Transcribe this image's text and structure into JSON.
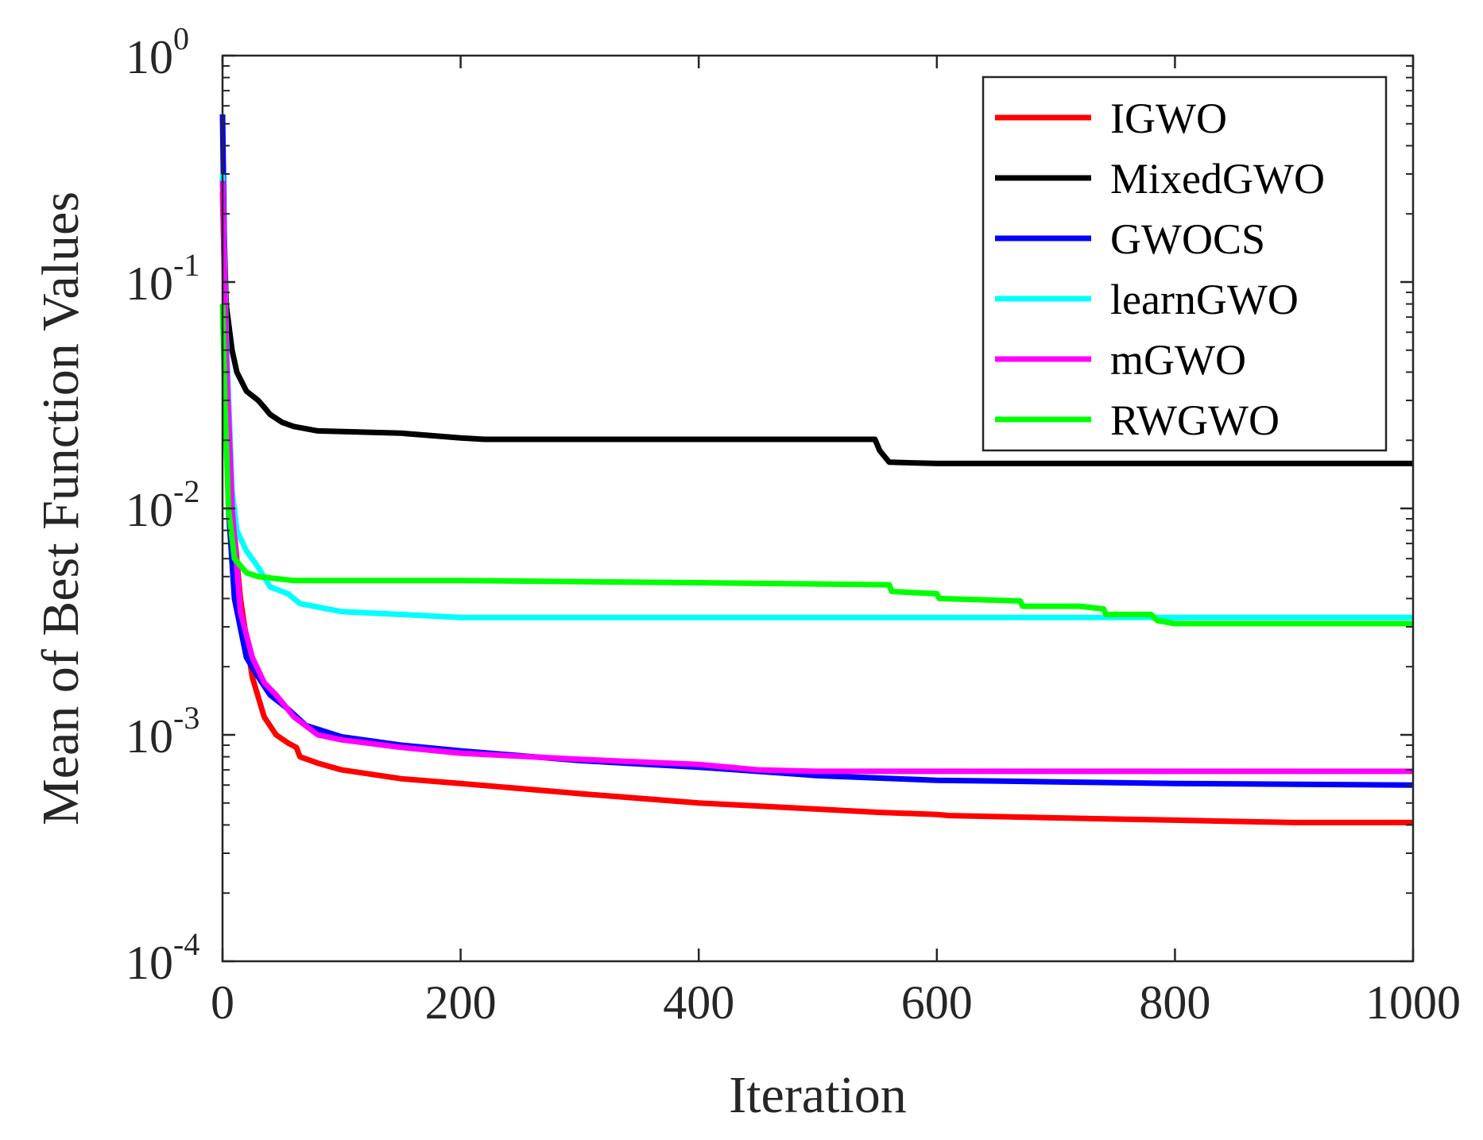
{
  "chart_data": {
    "type": "line",
    "title": "",
    "xlabel": "Iteration",
    "ylabel": "Mean of Best Function Values",
    "xlim": [
      0,
      1000
    ],
    "ylim_log10": [
      -4,
      0
    ],
    "y_scale": "log",
    "grid": false,
    "legend_position": "top-right",
    "x_ticks": [
      0,
      200,
      400,
      600,
      800,
      1000
    ],
    "x_tick_labels": [
      "0",
      "200",
      "400",
      "600",
      "800",
      "1000"
    ],
    "y_ticks": [
      {
        "base": "10",
        "exp": "0",
        "value": 1
      },
      {
        "base": "10",
        "exp": "-1",
        "value": 0.1
      },
      {
        "base": "10",
        "exp": "-2",
        "value": 0.01
      },
      {
        "base": "10",
        "exp": "-3",
        "value": 0.001
      },
      {
        "base": "10",
        "exp": "-4",
        "value": 0.0001
      }
    ],
    "series": [
      {
        "name": "IGWO",
        "color": "#ff0000",
        "points": [
          [
            0,
            0.25
          ],
          [
            3,
            0.05
          ],
          [
            8,
            0.01
          ],
          [
            15,
            0.004
          ],
          [
            25,
            0.0018
          ],
          [
            35,
            0.0012
          ],
          [
            45,
            0.001
          ],
          [
            55,
            0.00092
          ],
          [
            62,
            0.00088
          ],
          [
            65,
            0.0008
          ],
          [
            80,
            0.00075
          ],
          [
            100,
            0.0007
          ],
          [
            150,
            0.00064
          ],
          [
            200,
            0.00061
          ],
          [
            300,
            0.00055
          ],
          [
            400,
            0.0005
          ],
          [
            500,
            0.00047
          ],
          [
            550,
            0.000455
          ],
          [
            600,
            0.000445
          ],
          [
            610,
            0.00044
          ],
          [
            700,
            0.00043
          ],
          [
            800,
            0.00042
          ],
          [
            900,
            0.00041
          ],
          [
            1000,
            0.00041
          ]
        ]
      },
      {
        "name": "MixedGWO",
        "color": "#000000",
        "points": [
          [
            0,
            0.3
          ],
          [
            3,
            0.08
          ],
          [
            8,
            0.05
          ],
          [
            12,
            0.04
          ],
          [
            20,
            0.033
          ],
          [
            30,
            0.03
          ],
          [
            35,
            0.028
          ],
          [
            40,
            0.026
          ],
          [
            50,
            0.024
          ],
          [
            60,
            0.023
          ],
          [
            80,
            0.022
          ],
          [
            150,
            0.0215
          ],
          [
            200,
            0.0205
          ],
          [
            220,
            0.0202
          ],
          [
            400,
            0.0202
          ],
          [
            548,
            0.0202
          ],
          [
            552,
            0.018
          ],
          [
            560,
            0.016
          ],
          [
            600,
            0.0158
          ],
          [
            1000,
            0.0158
          ]
        ]
      },
      {
        "name": "GWOCS",
        "color": "#0000ff",
        "points": [
          [
            0,
            0.55
          ],
          [
            2,
            0.1
          ],
          [
            5,
            0.01
          ],
          [
            10,
            0.004
          ],
          [
            20,
            0.0022
          ],
          [
            30,
            0.0018
          ],
          [
            40,
            0.0015
          ],
          [
            55,
            0.0013
          ],
          [
            70,
            0.0011
          ],
          [
            100,
            0.00098
          ],
          [
            150,
            0.0009
          ],
          [
            200,
            0.00085
          ],
          [
            300,
            0.00077
          ],
          [
            400,
            0.00072
          ],
          [
            500,
            0.00066
          ],
          [
            600,
            0.00063
          ],
          [
            700,
            0.00062
          ],
          [
            800,
            0.00061
          ],
          [
            1000,
            0.0006
          ]
        ]
      },
      {
        "name": "learnGWO",
        "color": "#00ffff",
        "points": [
          [
            0,
            0.3
          ],
          [
            3,
            0.06
          ],
          [
            8,
            0.012
          ],
          [
            12,
            0.008
          ],
          [
            20,
            0.0065
          ],
          [
            30,
            0.0055
          ],
          [
            40,
            0.0045
          ],
          [
            55,
            0.0042
          ],
          [
            65,
            0.0038
          ],
          [
            100,
            0.0035
          ],
          [
            150,
            0.0034
          ],
          [
            200,
            0.0033
          ],
          [
            400,
            0.0033
          ],
          [
            600,
            0.0033
          ],
          [
            800,
            0.0033
          ],
          [
            1000,
            0.0033
          ]
        ]
      },
      {
        "name": "mGWO",
        "color": "#ff00ff",
        "points": [
          [
            0,
            0.28
          ],
          [
            3,
            0.05
          ],
          [
            8,
            0.01
          ],
          [
            15,
            0.0035
          ],
          [
            25,
            0.0022
          ],
          [
            35,
            0.0017
          ],
          [
            45,
            0.0015
          ],
          [
            60,
            0.0012
          ],
          [
            80,
            0.001
          ],
          [
            100,
            0.00095
          ],
          [
            150,
            0.00088
          ],
          [
            200,
            0.00083
          ],
          [
            300,
            0.00078
          ],
          [
            400,
            0.00074
          ],
          [
            450,
            0.0007
          ],
          [
            500,
            0.00069
          ],
          [
            1000,
            0.00069
          ]
        ]
      },
      {
        "name": "RWGWO",
        "color": "#00ff00",
        "points": [
          [
            0,
            0.08
          ],
          [
            2,
            0.03
          ],
          [
            5,
            0.01
          ],
          [
            10,
            0.006
          ],
          [
            20,
            0.0052
          ],
          [
            30,
            0.005
          ],
          [
            60,
            0.0048
          ],
          [
            200,
            0.0048
          ],
          [
            400,
            0.0047
          ],
          [
            560,
            0.0046
          ],
          [
            562,
            0.0043
          ],
          [
            600,
            0.0042
          ],
          [
            602,
            0.004
          ],
          [
            670,
            0.0039
          ],
          [
            672,
            0.0037
          ],
          [
            720,
            0.0037
          ],
          [
            740,
            0.0036
          ],
          [
            742,
            0.0034
          ],
          [
            780,
            0.0034
          ],
          [
            785,
            0.0032
          ],
          [
            800,
            0.0031
          ],
          [
            1000,
            0.0031
          ]
        ]
      }
    ]
  }
}
